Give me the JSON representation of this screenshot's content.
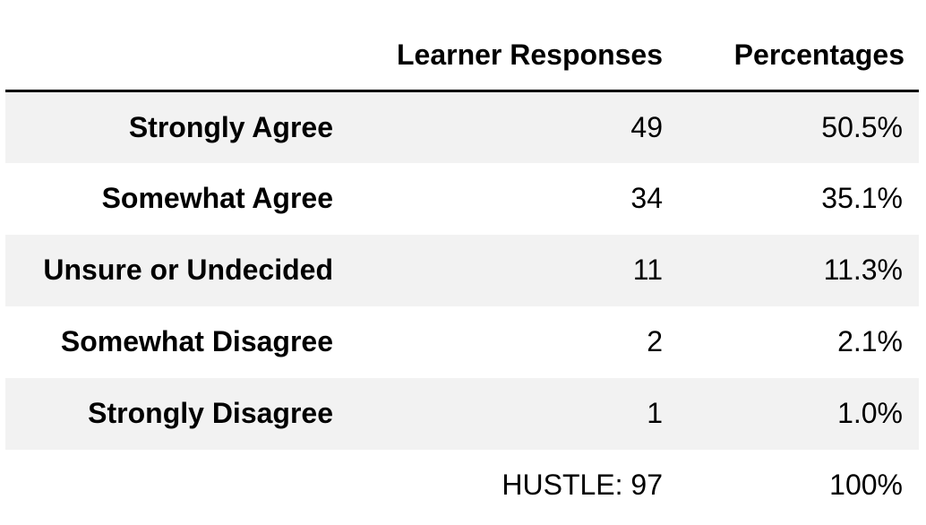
{
  "table": {
    "columns": [
      "Learner Responses",
      "Percentages"
    ],
    "rows": [
      {
        "label": "Strongly Agree",
        "responses": "49",
        "percent": "50.5%"
      },
      {
        "label": "Somewhat Agree",
        "responses": "34",
        "percent": "35.1%"
      },
      {
        "label": "Unsure or Undecided",
        "responses": "11",
        "percent": "11.3%"
      },
      {
        "label": "Somewhat Disagree",
        "responses": "2",
        "percent": "2.1%"
      },
      {
        "label": "Strongly Disagree",
        "responses": "1",
        "percent": "1.0%"
      }
    ],
    "total": {
      "label": "",
      "responses": "HUSTLE: 97",
      "percent": "100%"
    }
  }
}
